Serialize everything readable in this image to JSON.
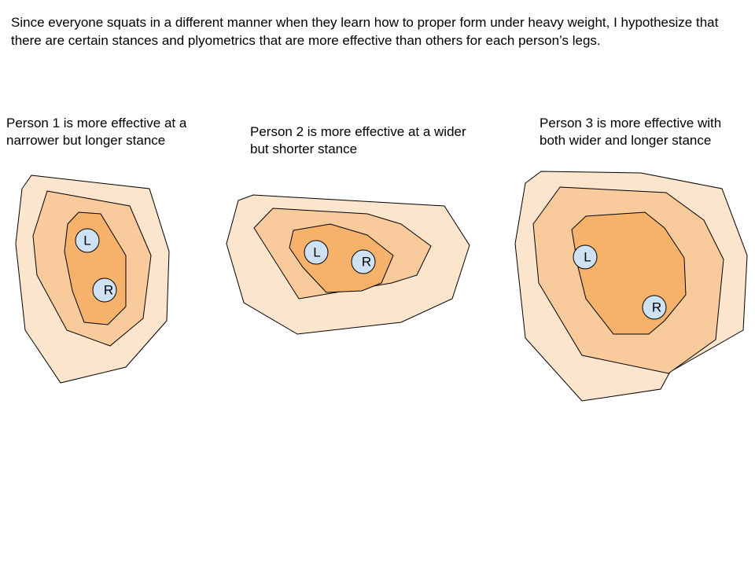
{
  "hypothesis": "Since everyone squats in a different manner when they learn how to proper form under heavy weight, I hypothesize that there are certain stances and plyometrics that are more effective than others for each person’s legs.",
  "persons": [
    {
      "caption": "Person 1 is more effective at a narrower but longer stance",
      "left_foot": "L",
      "right_foot": "R"
    },
    {
      "caption": "Person 2 is more effective at a wider but shorter stance",
      "left_foot": "L",
      "right_foot": "R"
    },
    {
      "caption": "Person 3 is more effective with both wider and longer stance",
      "left_foot": "L",
      "right_foot": "R"
    }
  ],
  "colors": {
    "outer_zone": "#fce5cd",
    "middle_zone": "#f9cb9c",
    "inner_zone": "#f6b26b",
    "foot_marker": "#cfe2f3"
  }
}
